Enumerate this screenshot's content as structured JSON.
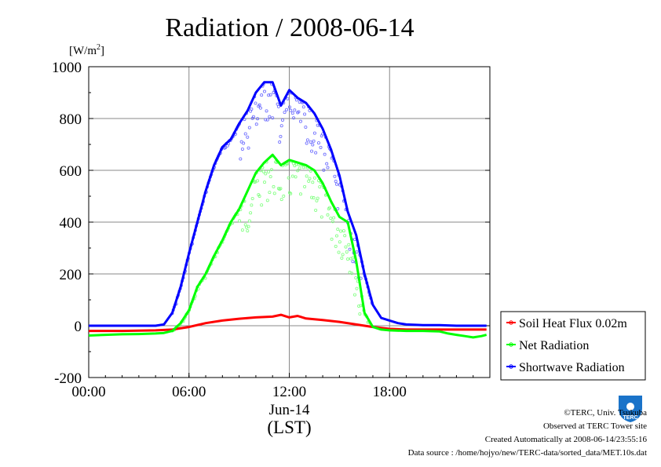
{
  "chart_data": {
    "type": "line",
    "title": "Radiation / 2008-06-14",
    "ylabel_unit": "[W/m",
    "ylabel_sup": "2",
    "ylabel_close": "]",
    "xlabel_date": "Jun-14",
    "xlabel_tz": "(LST)",
    "ylim": [
      -200,
      1000
    ],
    "xlim_hours": [
      0,
      24
    ],
    "yticks": [
      -200,
      0,
      200,
      400,
      600,
      800,
      1000
    ],
    "xticks": [
      {
        "h": 0,
        "label": "00:00"
      },
      {
        "h": 6,
        "label": "06:00"
      },
      {
        "h": 12,
        "label": "12:00"
      },
      {
        "h": 18,
        "label": "18:00"
      }
    ],
    "grid": true,
    "legend_position": "right-bottom",
    "series": [
      {
        "name": "Soil Heat Flux 0.02m",
        "color": "#ff0000",
        "x": [
          0,
          1,
          2,
          3,
          4,
          5,
          6,
          7,
          8,
          9,
          10,
          11,
          11.5,
          12,
          12.5,
          13,
          14,
          15,
          16,
          17,
          18,
          19,
          20,
          21,
          22,
          23,
          23.8
        ],
        "y": [
          -20,
          -20,
          -20,
          -19,
          -18,
          -15,
          -5,
          10,
          20,
          27,
          32,
          35,
          42,
          32,
          38,
          28,
          22,
          15,
          5,
          -5,
          -12,
          -15,
          -15,
          -15,
          -15,
          -15,
          -15
        ]
      },
      {
        "name": "Net Radiation",
        "color": "#00ff00",
        "x": [
          0,
          1,
          2,
          3,
          4,
          4.5,
          5,
          5.5,
          6,
          6.5,
          7,
          7.5,
          8,
          8.5,
          9,
          9.5,
          10,
          10.5,
          11,
          11.5,
          12,
          12.5,
          13,
          13.5,
          14,
          14.5,
          15,
          15.5,
          16,
          16.5,
          17,
          17.5,
          18,
          19,
          20,
          21,
          21.5,
          22,
          22.5,
          23,
          23.5,
          23.8
        ],
        "y": [
          -38,
          -35,
          -33,
          -32,
          -30,
          -28,
          -20,
          10,
          60,
          150,
          200,
          270,
          330,
          400,
          450,
          520,
          590,
          630,
          660,
          620,
          640,
          630,
          620,
          600,
          550,
          480,
          420,
          400,
          250,
          50,
          -5,
          -15,
          -18,
          -20,
          -20,
          -22,
          -30,
          -35,
          -40,
          -45,
          -40,
          -35
        ]
      },
      {
        "name": "Shortwave Radiation",
        "color": "#0000ff",
        "x": [
          0,
          1,
          2,
          3,
          4,
          4.5,
          5,
          5.5,
          6,
          6.5,
          7,
          7.5,
          8,
          8.5,
          9,
          9.5,
          10,
          10.5,
          11,
          11.5,
          12,
          12.5,
          13,
          13.5,
          14,
          14.5,
          15,
          15.5,
          16,
          16.5,
          17,
          17.5,
          18,
          18.5,
          19,
          20,
          21,
          22,
          23,
          23.8
        ],
        "y": [
          0,
          0,
          0,
          0,
          0,
          5,
          50,
          150,
          280,
          400,
          520,
          620,
          690,
          720,
          780,
          830,
          900,
          940,
          940,
          850,
          910,
          880,
          860,
          820,
          760,
          680,
          580,
          440,
          350,
          200,
          80,
          30,
          20,
          10,
          5,
          2,
          2,
          0,
          0,
          0
        ]
      }
    ],
    "scatter_spread": [
      {
        "from": 9,
        "to": 16,
        "series": 2,
        "note": "1-min samples scatter below curve"
      }
    ]
  },
  "credits": {
    "line1": "©TERC, Univ. Tsukuba",
    "line2": "Observed at TERC Tower site",
    "line3": "Created Automatically at 2008-06-14/23:55:16",
    "line4": "Data source : /home/hojyo/new/TERC-data/sorted_data/MET.10s.dat"
  },
  "logo": {
    "text": "TERC",
    "color": "#1a73c9"
  }
}
